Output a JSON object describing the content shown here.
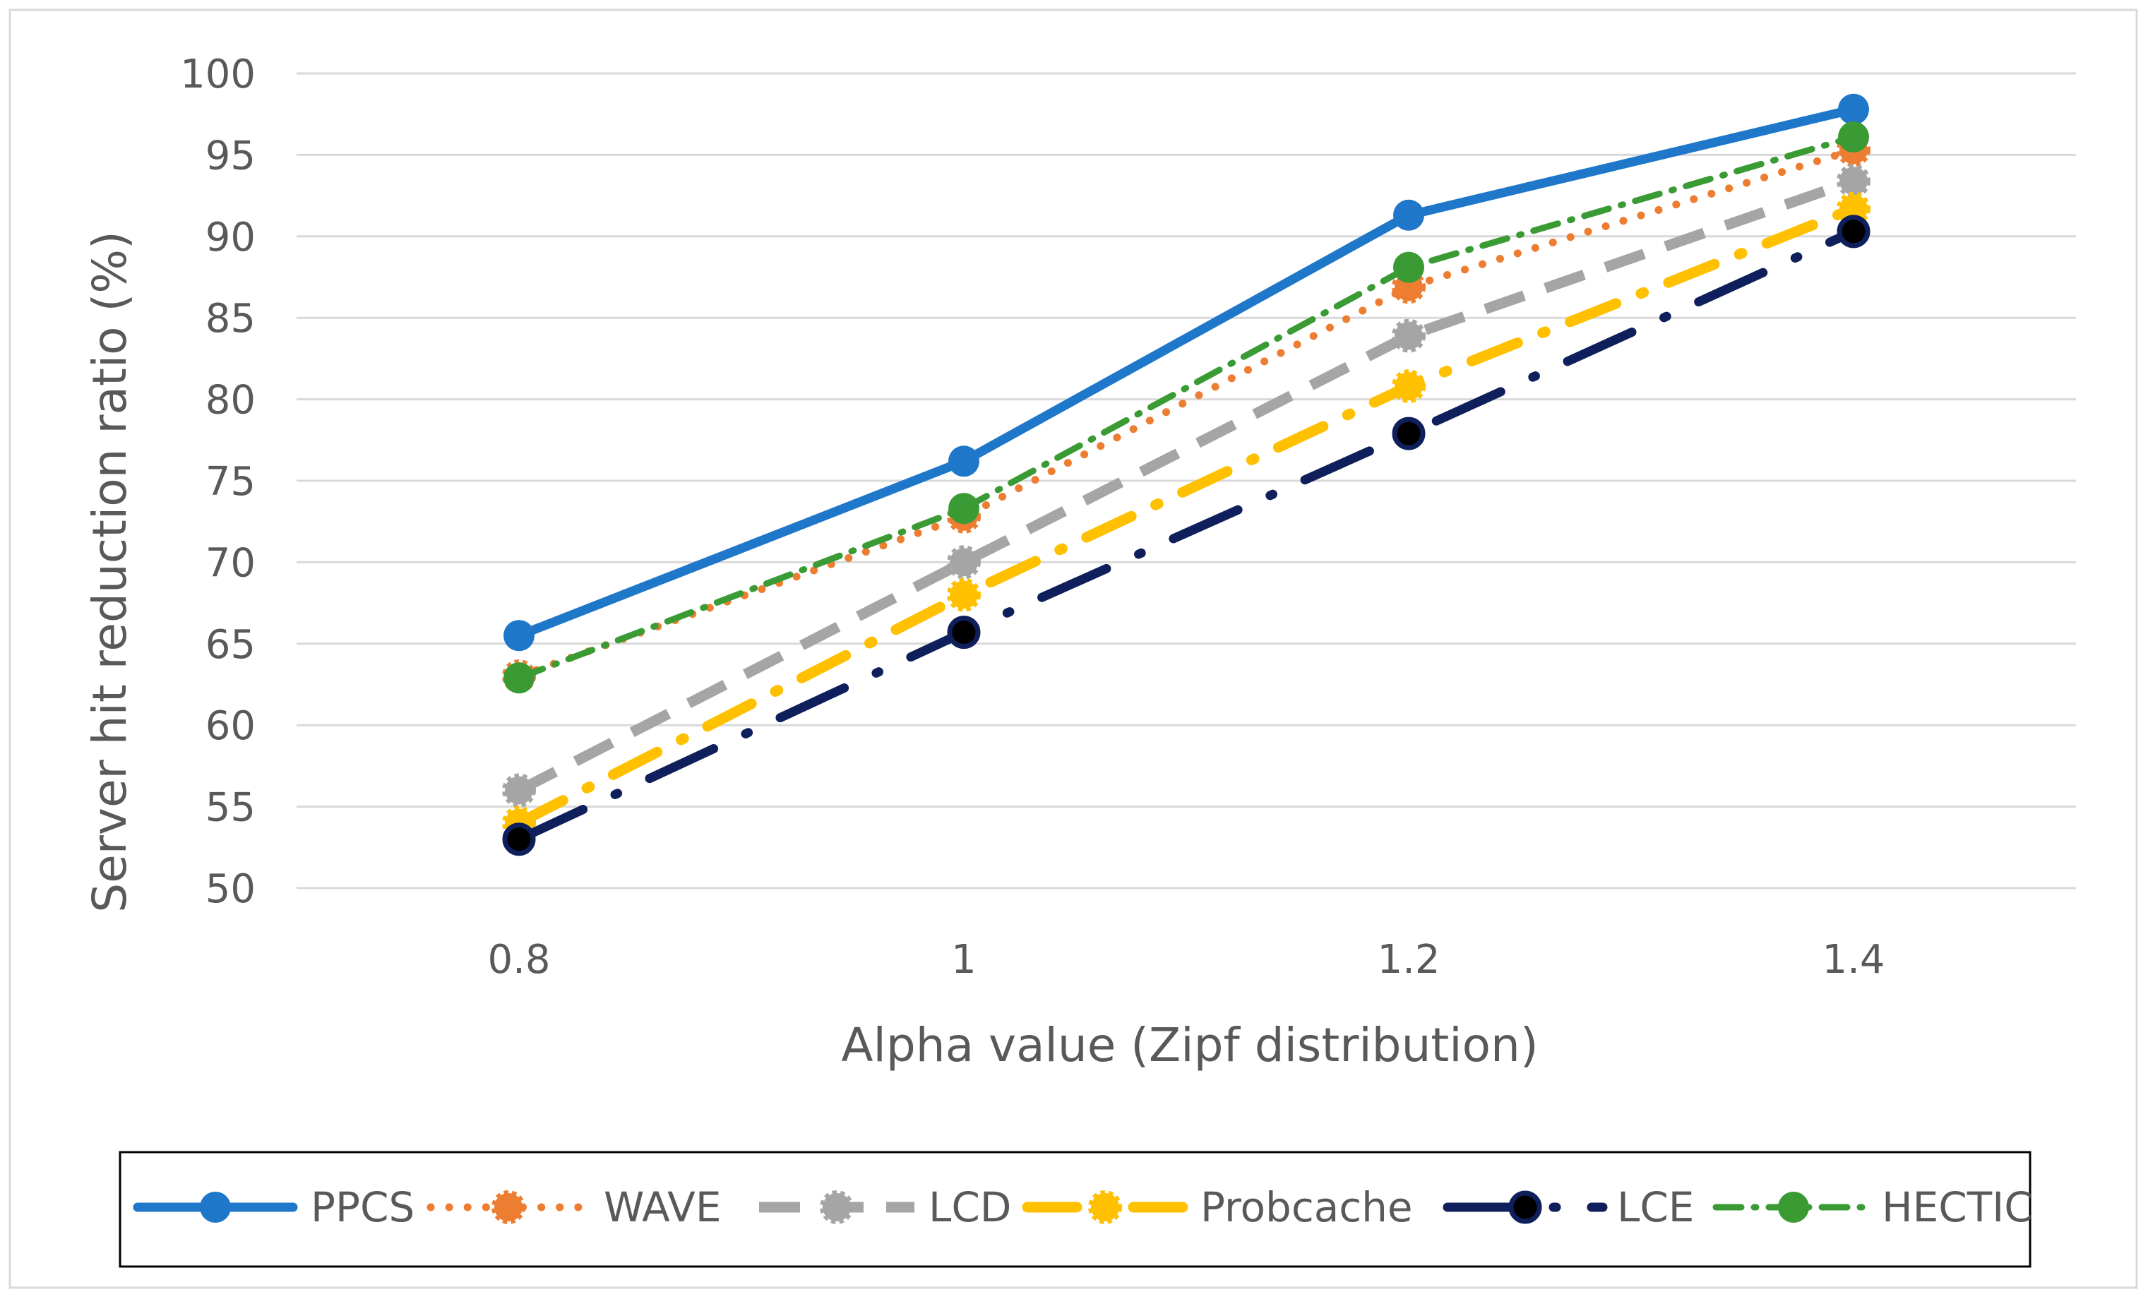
{
  "chart_data": {
    "type": "line",
    "title": "",
    "xlabel": "Alpha value (Zipf distribution)",
    "ylabel": "Server hit reduction ratio (%)",
    "categories": [
      "0.8",
      "1",
      "1.2",
      "1.4"
    ],
    "ylim": [
      50,
      100
    ],
    "yticks": [
      "50",
      "55",
      "60",
      "65",
      "70",
      "75",
      "80",
      "85",
      "90",
      "95",
      "100"
    ],
    "grid": true,
    "legend_position": "bottom",
    "series": [
      {
        "name": "PPCS",
        "values": [
          65.5,
          76.2,
          91.3,
          97.8
        ],
        "color": "#1F77C9",
        "style": "solid"
      },
      {
        "name": "WAVE",
        "values": [
          63.0,
          72.8,
          86.9,
          95.3
        ],
        "color": "#ED7D31",
        "style": "dotted"
      },
      {
        "name": "LCD",
        "values": [
          56.0,
          70.0,
          83.9,
          93.4
        ],
        "color": "#A5A5A5",
        "style": "dashed"
      },
      {
        "name": "Probcache",
        "values": [
          54.0,
          68.0,
          80.8,
          91.7
        ],
        "color": "#FFC000",
        "style": "longdash"
      },
      {
        "name": "LCE",
        "values": [
          53.0,
          65.7,
          77.9,
          90.3
        ],
        "color": "#0E1F5B",
        "style": "dashdot"
      },
      {
        "name": "HECTIC",
        "values": [
          62.9,
          73.3,
          88.1,
          96.1
        ],
        "color": "#3A9B35",
        "style": "dashdotted-green"
      }
    ]
  }
}
